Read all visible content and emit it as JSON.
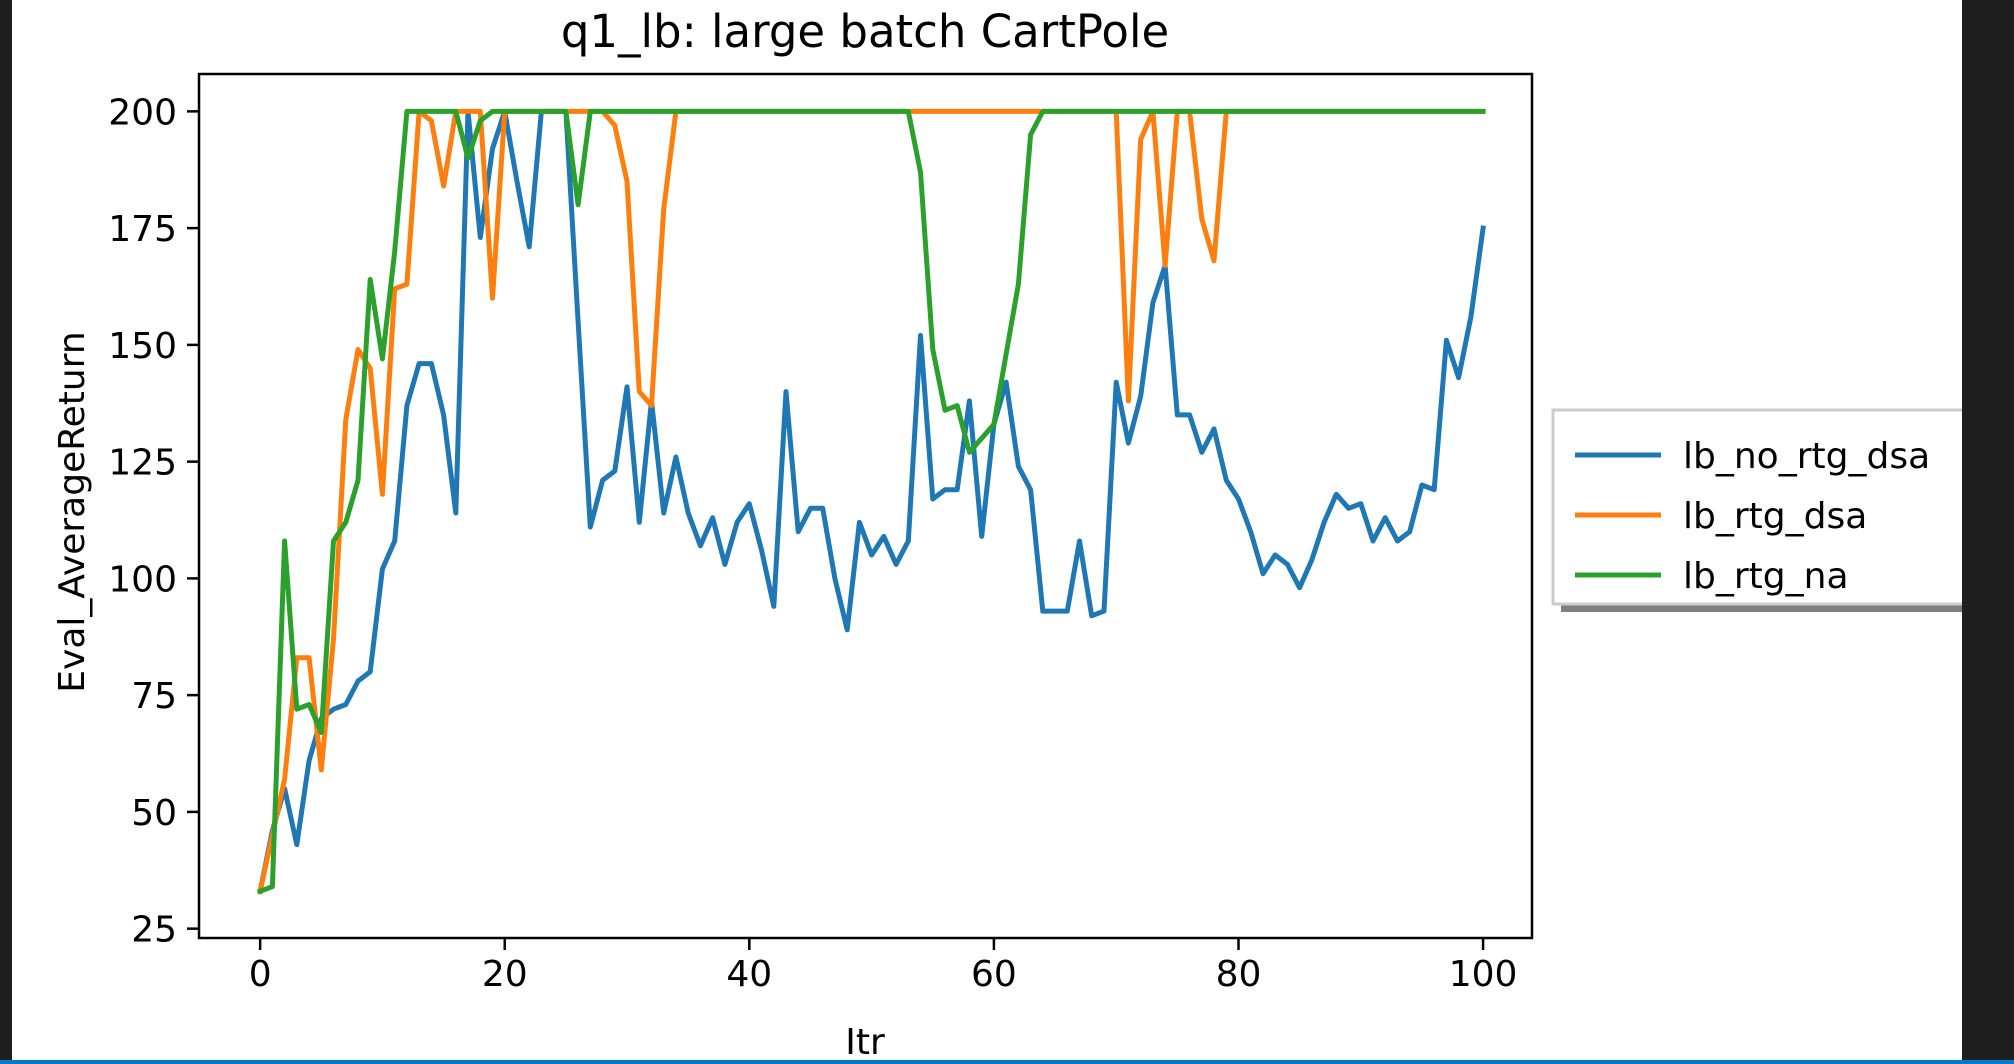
{
  "chart_data": {
    "type": "line",
    "title": "q1_lb: large batch CartPole",
    "xlabel": "Itr",
    "ylabel": "Eval_AverageReturn",
    "xlim": [
      -5,
      104
    ],
    "ylim": [
      23,
      208
    ],
    "xticks": [
      0,
      20,
      40,
      60,
      80,
      100
    ],
    "yticks": [
      25,
      50,
      75,
      100,
      125,
      150,
      175,
      200
    ],
    "grid": false,
    "legend_position": "outside-right",
    "series": [
      {
        "name": "lb_no_rtg_dsa",
        "color": "#1f77b4",
        "values": [
          33,
          46,
          55,
          43,
          61,
          70,
          72,
          73,
          78,
          80,
          102,
          108,
          137,
          146,
          146,
          135,
          114,
          200,
          173,
          192,
          200,
          185,
          171,
          200,
          200,
          200,
          155,
          111,
          121,
          123,
          141,
          112,
          138,
          114,
          126,
          114,
          107,
          113,
          103,
          112,
          116,
          106,
          94,
          140,
          110,
          115,
          115,
          100,
          89,
          112,
          105,
          109,
          103,
          108,
          152,
          117,
          119,
          119,
          138,
          109,
          133,
          142,
          124,
          119,
          93,
          93,
          93,
          108,
          92,
          93,
          142,
          129,
          139,
          159,
          167,
          135,
          135,
          127,
          132,
          121,
          117,
          110,
          101,
          105,
          103,
          98,
          104,
          112,
          118,
          115,
          116,
          108,
          113,
          108,
          110,
          120,
          119,
          151,
          143,
          156,
          175
        ]
      },
      {
        "name": "lb_rtg_dsa",
        "color": "#ff7f0e",
        "values": [
          33,
          45,
          57,
          83,
          83,
          59,
          87,
          134,
          149,
          145,
          118,
          162,
          163,
          200,
          198,
          184,
          200,
          200,
          200,
          160,
          200,
          200,
          200,
          200,
          200,
          200,
          200,
          200,
          200,
          197,
          185,
          140,
          137,
          179,
          200,
          200,
          200,
          200,
          200,
          200,
          200,
          200,
          200,
          200,
          200,
          200,
          200,
          200,
          200,
          200,
          200,
          200,
          200,
          200,
          200,
          200,
          200,
          200,
          200,
          200,
          200,
          200,
          200,
          200,
          200,
          200,
          200,
          200,
          200,
          200,
          200,
          138,
          194,
          200,
          167,
          200,
          200,
          177,
          168,
          200,
          200,
          200,
          200,
          200,
          200,
          200,
          200,
          200,
          200,
          200,
          200,
          200,
          200,
          200,
          200,
          200,
          200,
          200,
          200,
          200,
          200
        ]
      },
      {
        "name": "lb_rtg_na",
        "color": "#2ca02c",
        "values": [
          33,
          34,
          108,
          72,
          73,
          67,
          108,
          112,
          121,
          164,
          147,
          170,
          200,
          200,
          200,
          200,
          200,
          190,
          198,
          200,
          200,
          200,
          200,
          200,
          200,
          200,
          180,
          200,
          200,
          200,
          200,
          200,
          200,
          200,
          200,
          200,
          200,
          200,
          200,
          200,
          200,
          200,
          200,
          200,
          200,
          200,
          200,
          200,
          200,
          200,
          200,
          200,
          200,
          200,
          187,
          149,
          136,
          137,
          127,
          130,
          133,
          148,
          163,
          195,
          200,
          200,
          200,
          200,
          200,
          200,
          200,
          200,
          200,
          200,
          200,
          200,
          200,
          200,
          200,
          200,
          200,
          200,
          200,
          200,
          200,
          200,
          200,
          200,
          200,
          200,
          200,
          200,
          200,
          200,
          200,
          200,
          200,
          200,
          200,
          200,
          200
        ]
      }
    ]
  }
}
